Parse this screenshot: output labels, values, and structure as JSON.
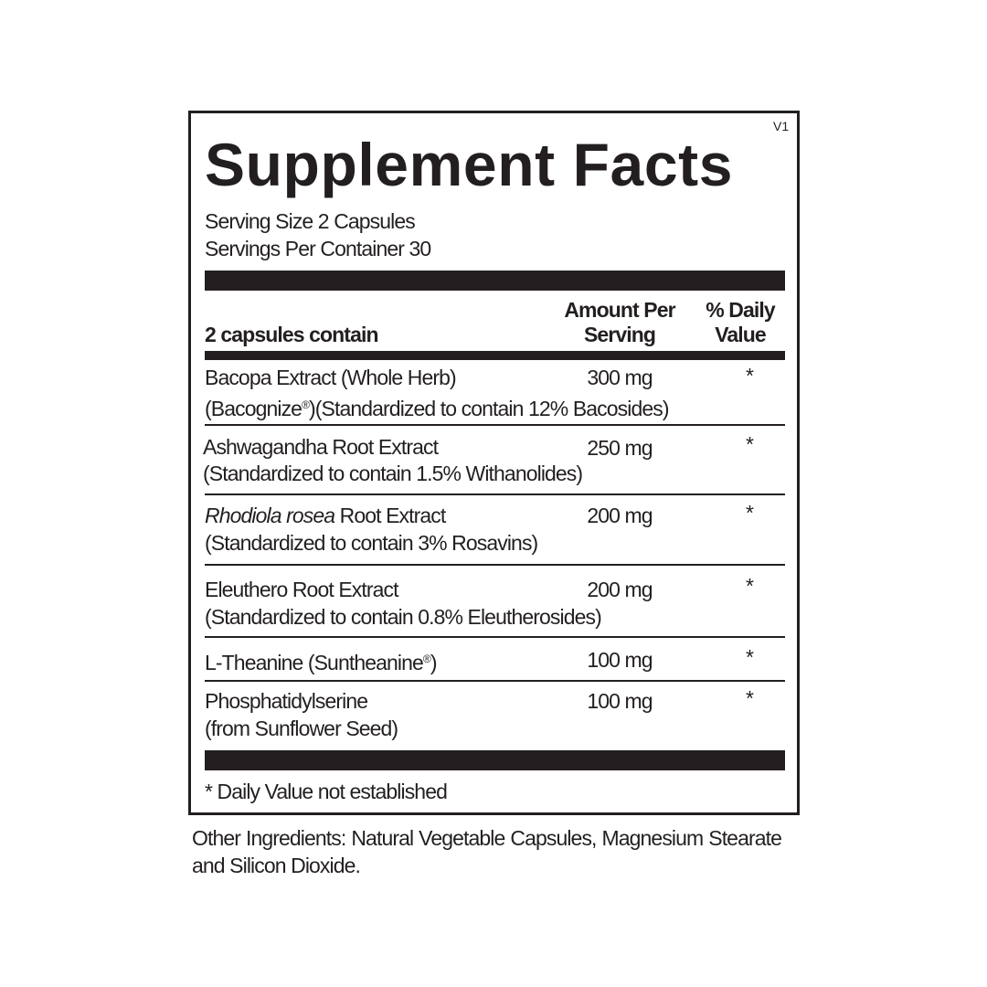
{
  "label": {
    "version": "V1",
    "title": "Supplement Facts",
    "serving_size": "Serving Size 2 Capsules",
    "servings_per_container": "Servings Per Container 30",
    "header": {
      "contains": "2 capsules contain",
      "amount_line1": "Amount Per",
      "amount_line2": "Serving",
      "dv_line1": "% Daily",
      "dv_line2": "Value"
    },
    "rows": [
      {
        "name": "Bacopa Extract (Whole Herb)",
        "detail_a": "(Bacognize",
        "reg": "®",
        "detail_b": ")(Standardized to contain 12% Bacosides)",
        "amount": "300 mg",
        "dv": "*"
      },
      {
        "name": "Ashwagandha Root Extract",
        "detail": "(Standardized to contain 1.5% Withanolides)",
        "amount": "250 mg",
        "dv": "*"
      },
      {
        "name_italic": "Rhodiola rosea",
        "name_rest": " Root Extract",
        "detail": "(Standardized to contain 3% Rosavins)",
        "amount": "200 mg",
        "dv": "*"
      },
      {
        "name": "Eleuthero Root Extract",
        "detail": "(Standardized to contain 0.8% Eleutherosides)",
        "amount": "200 mg",
        "dv": "*"
      },
      {
        "name_a": "L-Theanine (Suntheanine",
        "reg": "®",
        "name_b": ")",
        "amount": "100 mg",
        "dv": "*"
      },
      {
        "name": "Phosphatidylserine",
        "detail": "(from Sunflower Seed)",
        "amount": "100 mg",
        "dv": "*"
      }
    ],
    "footnote": "* Daily Value not established"
  },
  "other_ingredients": "Other Ingredients: Natural Vegetable Capsules, Magnesium Stearate and Silicon Dioxide."
}
